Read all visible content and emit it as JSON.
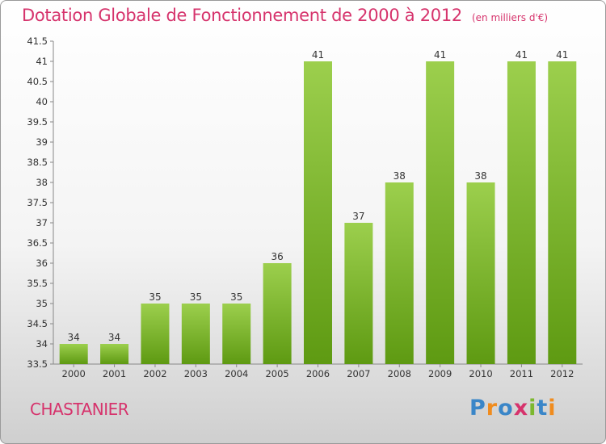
{
  "title": "Dotation Globale de Fonctionnement de 2000 à 2012",
  "subtitle": "(en milliers d'€)",
  "commune": "CHASTANIER",
  "logo": {
    "letters": [
      "P",
      "r",
      "o",
      "x",
      "i",
      "t",
      "i"
    ],
    "colors": [
      "#3a86c8",
      "#f08c1e",
      "#3a86c8",
      "#d6336c",
      "#7cb82f",
      "#3a86c8",
      "#f08c1e"
    ]
  },
  "colors": {
    "title": "#d6336c",
    "bar_top": "#9ccf4d",
    "bar_bottom": "#5e9a12"
  },
  "chart_data": {
    "type": "bar",
    "title": "Dotation Globale de Fonctionnement de 2000 à 2012",
    "subtitle": "(en milliers d'€)",
    "categories": [
      "2000",
      "2001",
      "2002",
      "2003",
      "2004",
      "2005",
      "2006",
      "2007",
      "2008",
      "2009",
      "2010",
      "2011",
      "2012"
    ],
    "values": [
      34,
      34,
      35,
      35,
      35,
      36,
      41,
      37,
      38,
      41,
      38,
      41,
      41
    ],
    "data_labels": [
      "34",
      "34",
      "35",
      "35",
      "35",
      "36",
      "41",
      "37",
      "38",
      "41",
      "38",
      "41",
      "41"
    ],
    "ylim": [
      33.5,
      41.5
    ],
    "yticks": [
      33.5,
      34,
      34.5,
      35,
      35.5,
      36,
      36.5,
      37,
      37.5,
      38,
      38.5,
      39,
      39.5,
      40,
      40.5,
      41,
      41.5
    ],
    "ytick_labels": [
      "33.5",
      "34",
      "34.5",
      "35",
      "35.5",
      "36",
      "36.5",
      "37",
      "37.5",
      "38",
      "38.5",
      "39",
      "39.5",
      "40",
      "40.5",
      "41",
      "41.5"
    ],
    "grid": false,
    "legend": "none"
  }
}
